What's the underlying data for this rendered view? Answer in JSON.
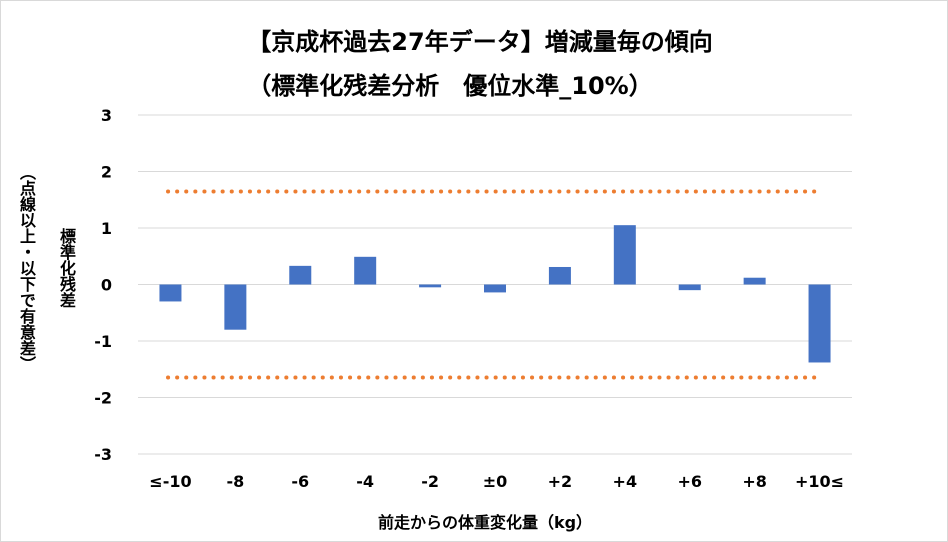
{
  "chart_data": {
    "type": "bar",
    "title": "【京成杯過去27年データ】増減量毎の傾向",
    "subtitle": "（標準化残差分析　優位水準_10%）",
    "xlabel": "前走からの体重変化量（kg）",
    "ylabel": "標準化残差",
    "ylabel_note": "（点線以上・以下で有意差）",
    "categories": [
      "≤-10",
      "-8",
      "-6",
      "-4",
      "-2",
      "±0",
      "+2",
      "+4",
      "+6",
      "+8",
      "+10≤"
    ],
    "values": [
      -0.3,
      -0.8,
      0.33,
      0.49,
      -0.05,
      -0.14,
      0.31,
      1.05,
      -0.1,
      0.12,
      -1.38
    ],
    "ylim": [
      -3,
      3
    ],
    "yticks": [
      3,
      2,
      1,
      0,
      -1,
      -2,
      -3
    ],
    "thresholds": [
      1.645,
      -1.645
    ],
    "grid": true,
    "legend": "none",
    "colors": {
      "bar": "#4472c4",
      "threshold": "#ed7d31",
      "grid": "#d9d9d9"
    }
  }
}
